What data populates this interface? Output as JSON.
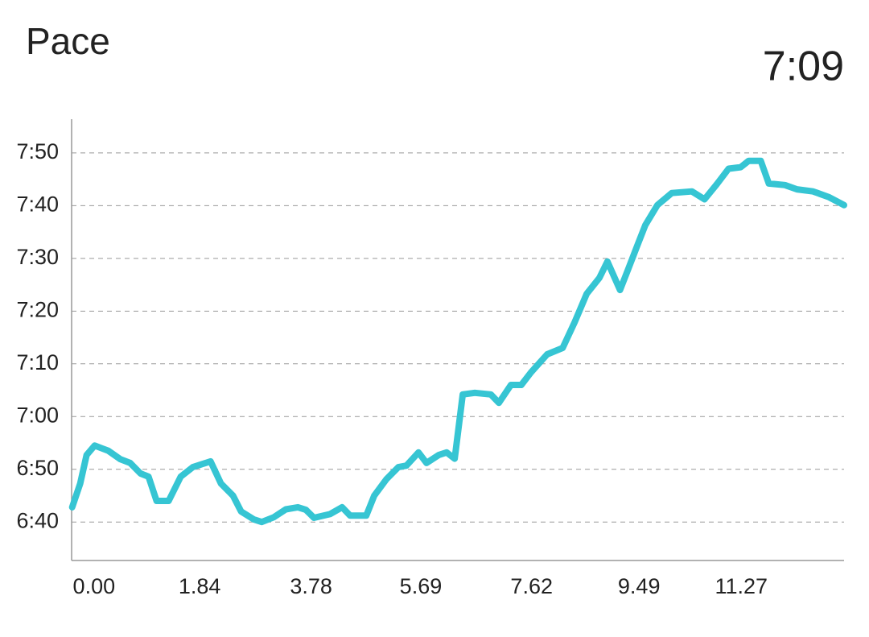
{
  "chart_data": {
    "type": "line",
    "title": "Pace",
    "current_value": "7:09",
    "color": "#36c5d3",
    "grid": true,
    "xlim": [
      -0.39,
      13.06
    ],
    "xticks": [
      {
        "value": 0,
        "label": "0.00"
      },
      1.84,
      3.78,
      5.69,
      7.62,
      9.49,
      11.27
    ],
    "ylim": [
      392.7,
      476.4
    ],
    "yticks": [
      {
        "value": 400,
        "label": "6:40"
      },
      {
        "value": 410,
        "label": "6:50"
      },
      {
        "value": 420,
        "label": "7:00"
      },
      {
        "value": 430,
        "label": "7:10"
      },
      {
        "value": 440,
        "label": "7:20"
      },
      {
        "value": 450,
        "label": "7:30"
      },
      {
        "value": 460,
        "label": "7:40"
      },
      {
        "value": 470,
        "label": "7:50"
      }
    ],
    "x": [
      -0.38,
      -0.24,
      -0.13,
      0.01,
      0.25,
      0.46,
      0.63,
      0.81,
      0.95,
      1.09,
      1.3,
      1.51,
      1.72,
      2.03,
      2.21,
      2.42,
      2.56,
      2.78,
      2.92,
      3.13,
      3.34,
      3.55,
      3.69,
      3.83,
      4.11,
      4.32,
      4.46,
      4.74,
      4.88,
      5.09,
      5.3,
      5.44,
      5.65,
      5.79,
      6.0,
      6.14,
      6.28,
      6.42,
      6.63,
      6.91,
      7.05,
      7.26,
      7.44,
      7.61,
      7.89,
      8.16,
      8.37,
      8.58,
      8.8,
      8.94,
      9.16,
      9.3,
      9.46,
      9.6,
      9.81,
      10.06,
      10.41,
      10.63,
      10.84,
      11.05,
      11.26,
      11.4,
      11.61,
      11.75,
      12.03,
      12.24,
      12.52,
      12.8,
      13.06
    ],
    "values": [
      402.8,
      407.3,
      412.7,
      414.5,
      413.5,
      411.9,
      411.2,
      409.2,
      408.6,
      404,
      404,
      408.6,
      410.4,
      411.5,
      407.3,
      405,
      402,
      400.5,
      400,
      400.9,
      402.4,
      402.8,
      402.3,
      400.8,
      401.5,
      402.8,
      401.2,
      401.2,
      405,
      408.1,
      410.4,
      410.7,
      413.2,
      411.2,
      412.7,
      413.2,
      412,
      424.2,
      424.5,
      424.2,
      422.6,
      426,
      426,
      428.4,
      431.8,
      433,
      437.9,
      443.3,
      446.3,
      449.4,
      444,
      447.9,
      452.4,
      456.3,
      460.1,
      462.4,
      462.7,
      461.2,
      464,
      467,
      467.3,
      468.5,
      468.5,
      464.2,
      463.9,
      463.1,
      462.7,
      461.6,
      460.1
    ]
  }
}
